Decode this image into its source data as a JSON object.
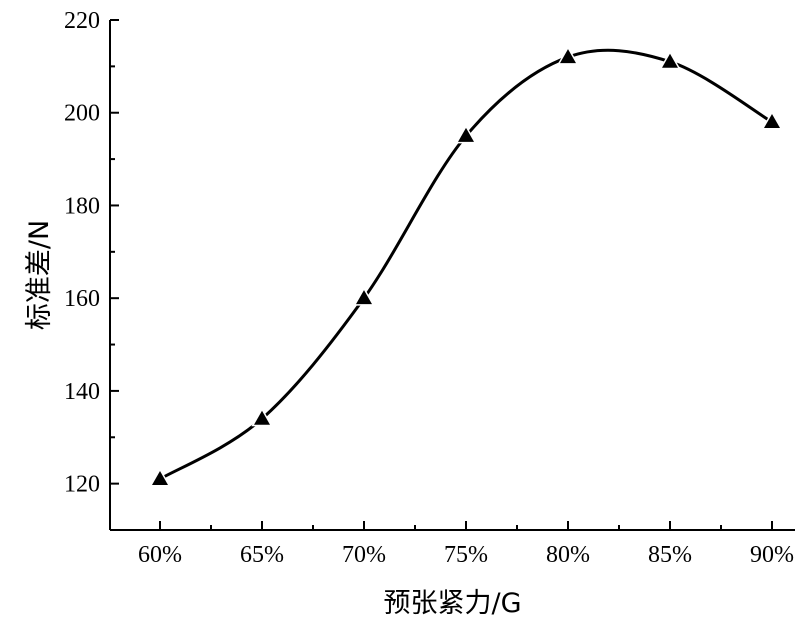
{
  "chart_data": {
    "type": "line",
    "x": [
      "60%",
      "65%",
      "70%",
      "75%",
      "80%",
      "85%",
      "90%"
    ],
    "series": [
      {
        "values": [
          121,
          134,
          160,
          195,
          212,
          211,
          198
        ],
        "marker": "triangle",
        "color": "#000000"
      }
    ],
    "xlabel": "预张紧力/G",
    "ylabel": "标准差/N",
    "ylim": [
      110,
      220
    ],
    "yticks": [
      120,
      140,
      160,
      180,
      200,
      220
    ],
    "grid": false,
    "smooth": true
  }
}
